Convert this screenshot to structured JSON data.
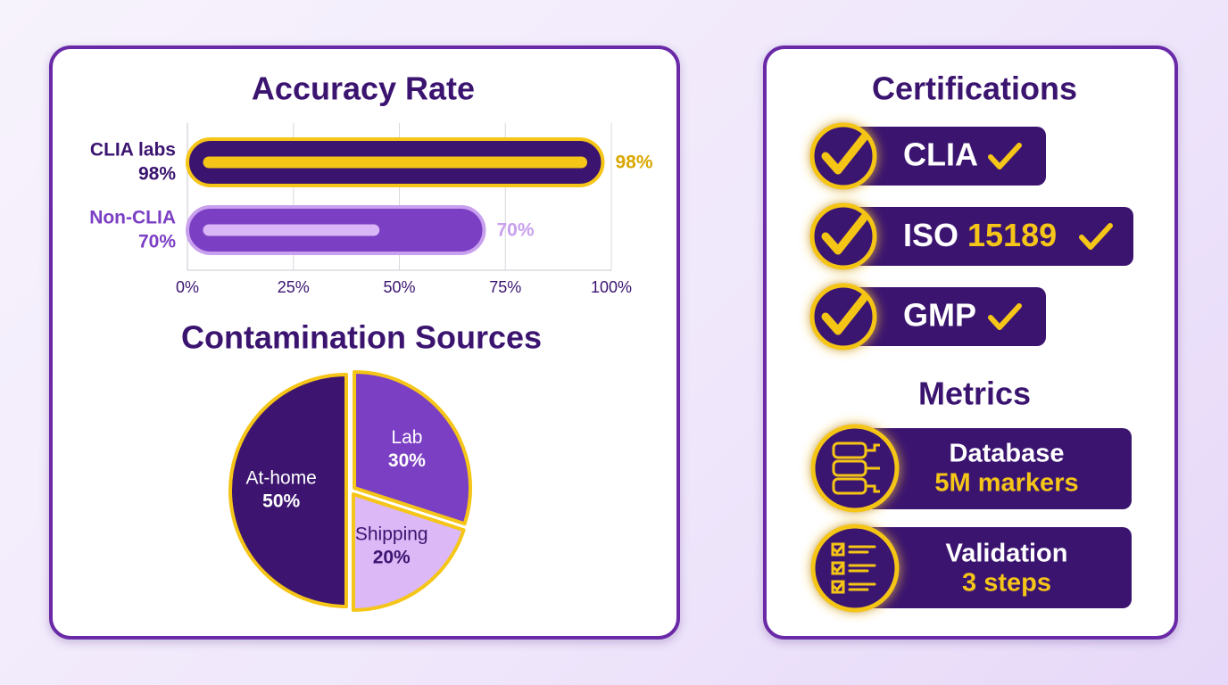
{
  "chart_data": [
    {
      "type": "bar",
      "orientation": "horizontal",
      "title": "Accuracy Rate",
      "categories": [
        "CLIA labs",
        "Non-CLIA"
      ],
      "values": [
        98,
        70
      ],
      "value_labels": [
        "98%",
        "70%"
      ],
      "colors": [
        "#3b1470",
        "#7b3fc4"
      ],
      "xlim": [
        0,
        100
      ],
      "xticks": [
        {
          "value": 0,
          "label": "0%"
        },
        {
          "value": 25,
          "label": "25%"
        },
        {
          "value": 50,
          "label": "50%"
        },
        {
          "value": 75,
          "label": "75%"
        },
        {
          "value": 100,
          "label": "100%"
        }
      ],
      "grid": true
    },
    {
      "type": "pie",
      "title": "Contamination Sources",
      "categories": [
        "Lab",
        "Shipping",
        "At-home"
      ],
      "values": [
        30,
        20,
        50
      ],
      "value_labels": [
        "30%",
        "20%",
        "50%"
      ],
      "colors": [
        "#7b3fc4",
        "#dcb8f6",
        "#3d1570"
      ]
    }
  ],
  "certifications": {
    "title": "Certifications",
    "items": [
      {
        "name": "CLIA"
      },
      {
        "name": "ISO",
        "number": "15189"
      },
      {
        "name": "GMP"
      }
    ]
  },
  "metrics": {
    "title": "Metrics",
    "items": [
      {
        "label": "Database",
        "value": "5M markers"
      },
      {
        "label": "Validation",
        "value": "3 steps"
      }
    ]
  }
}
